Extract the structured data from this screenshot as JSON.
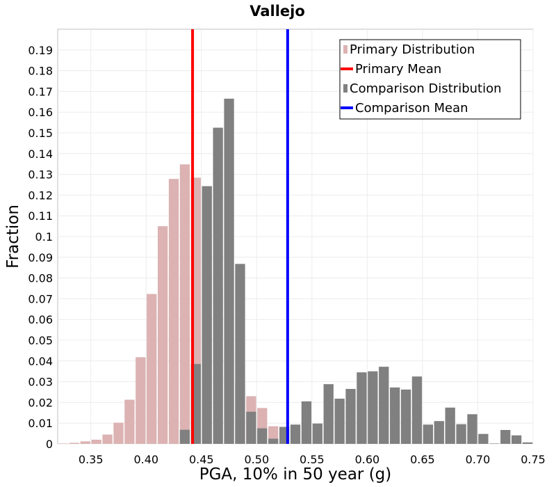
{
  "chart_data": {
    "type": "bar",
    "title": "Vallejo",
    "xlabel": "PGA, 10% in 50 year (g)",
    "ylabel": "Fraction",
    "xlim": [
      0.32,
      0.75
    ],
    "ylim": [
      0,
      0.2
    ],
    "bin_width": 0.01,
    "x_ticks": [
      {
        "value": 0.35,
        "label": "0.35"
      },
      {
        "value": 0.4,
        "label": "0.40"
      },
      {
        "value": 0.45,
        "label": "0.45"
      },
      {
        "value": 0.5,
        "label": "0.50"
      },
      {
        "value": 0.55,
        "label": "0.55"
      },
      {
        "value": 0.6,
        "label": "0.60"
      },
      {
        "value": 0.65,
        "label": "0.65"
      },
      {
        "value": 0.7,
        "label": "0.70"
      },
      {
        "value": 0.75,
        "label": "0.75"
      }
    ],
    "y_ticks": [
      {
        "value": 0,
        "label": "0"
      },
      {
        "value": 0.01,
        "label": "0.01"
      },
      {
        "value": 0.02,
        "label": "0.02"
      },
      {
        "value": 0.03,
        "label": "0.03"
      },
      {
        "value": 0.04,
        "label": "0.04"
      },
      {
        "value": 0.05,
        "label": "0.05"
      },
      {
        "value": 0.06,
        "label": "0.06"
      },
      {
        "value": 0.07,
        "label": "0.07"
      },
      {
        "value": 0.08,
        "label": "0.08"
      },
      {
        "value": 0.09,
        "label": "0.09"
      },
      {
        "value": 0.1,
        "label": "0.1"
      },
      {
        "value": 0.11,
        "label": "0.11"
      },
      {
        "value": 0.12,
        "label": "0.12"
      },
      {
        "value": 0.13,
        "label": "0.13"
      },
      {
        "value": 0.14,
        "label": "0.14"
      },
      {
        "value": 0.15,
        "label": "0.15"
      },
      {
        "value": 0.16,
        "label": "0.16"
      },
      {
        "value": 0.17,
        "label": "0.17"
      },
      {
        "value": 0.18,
        "label": "0.18"
      },
      {
        "value": 0.19,
        "label": "0.19"
      }
    ],
    "series": [
      {
        "name": "Primary Distribution",
        "color": "#dcb2b2",
        "x": [
          0.325,
          0.335,
          0.345,
          0.355,
          0.365,
          0.375,
          0.385,
          0.395,
          0.405,
          0.415,
          0.425,
          0.435,
          0.445,
          0.455,
          0.465,
          0.475,
          0.485,
          0.495,
          0.505,
          0.515
        ],
        "values": [
          0.0002,
          0.0005,
          0.0012,
          0.002,
          0.0045,
          0.0102,
          0.0213,
          0.0418,
          0.0723,
          0.105,
          0.1278,
          0.1348,
          0.1284,
          0.0985,
          0.076,
          0.0458,
          0.029,
          0.023,
          0.0173,
          0.0085
        ]
      },
      {
        "name": "Comparison Distribution",
        "color": "#808080",
        "x": [
          0.435,
          0.445,
          0.455,
          0.465,
          0.475,
          0.485,
          0.495,
          0.505,
          0.515,
          0.525,
          0.535,
          0.545,
          0.555,
          0.565,
          0.575,
          0.585,
          0.595,
          0.605,
          0.615,
          0.625,
          0.635,
          0.645,
          0.655,
          0.665,
          0.675,
          0.685,
          0.695,
          0.705,
          0.715,
          0.725,
          0.735,
          0.745
        ],
        "values": [
          0.0068,
          0.0385,
          0.1243,
          0.1525,
          0.1665,
          0.0868,
          0.0155,
          0.0075,
          0.0025,
          0.0082,
          0.0093,
          0.0205,
          0.0098,
          0.0288,
          0.0218,
          0.0265,
          0.0345,
          0.035,
          0.0372,
          0.0272,
          0.0262,
          0.0325,
          0.0093,
          0.011,
          0.0175,
          0.0095,
          0.0143,
          0.0048,
          0.0002,
          0.0067,
          0.0041,
          0.0007
        ]
      }
    ],
    "lines": [
      {
        "name": "Primary Mean",
        "color": "#ff0000",
        "x": 0.442
      },
      {
        "name": "Comparison Mean",
        "color": "#0000ff",
        "x": 0.528
      }
    ],
    "legend": {
      "position": "top-right",
      "entries": [
        {
          "label": "Primary Distribution",
          "kind": "bar",
          "color": "#dcb2b2"
        },
        {
          "label": "Primary Mean",
          "kind": "line",
          "color": "#ff0000"
        },
        {
          "label": "Comparison Distribution",
          "kind": "bar",
          "color": "#808080"
        },
        {
          "label": "Comparison Mean",
          "kind": "line",
          "color": "#0000ff"
        }
      ]
    },
    "grid": true
  }
}
